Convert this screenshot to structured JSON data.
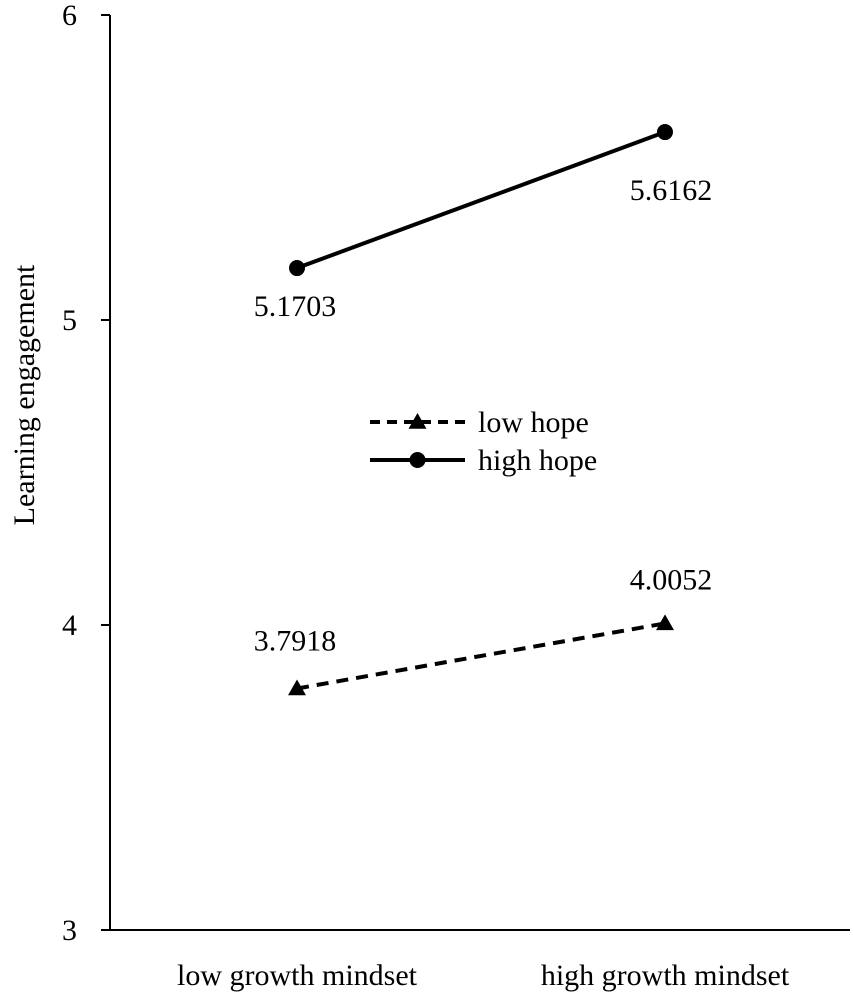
{
  "chart_data": {
    "type": "line",
    "title": "",
    "xlabel": "",
    "ylabel": "Learning engagement",
    "categories": [
      "low growth mindset",
      "high growth mindset"
    ],
    "ylim": [
      3,
      6
    ],
    "yticks": [
      3,
      4,
      5,
      6
    ],
    "grid": false,
    "legend_position": "center",
    "series": [
      {
        "name": "low hope",
        "values": [
          3.7918,
          4.0052
        ],
        "labels": [
          "3.7918",
          "4.0052"
        ],
        "line_style": "dashed",
        "marker": "triangle",
        "color": "#000000"
      },
      {
        "name": "high hope",
        "values": [
          5.1703,
          5.6162
        ],
        "labels": [
          "5.1703",
          "5.6162"
        ],
        "line_style": "solid",
        "marker": "circle",
        "color": "#000000"
      }
    ]
  }
}
